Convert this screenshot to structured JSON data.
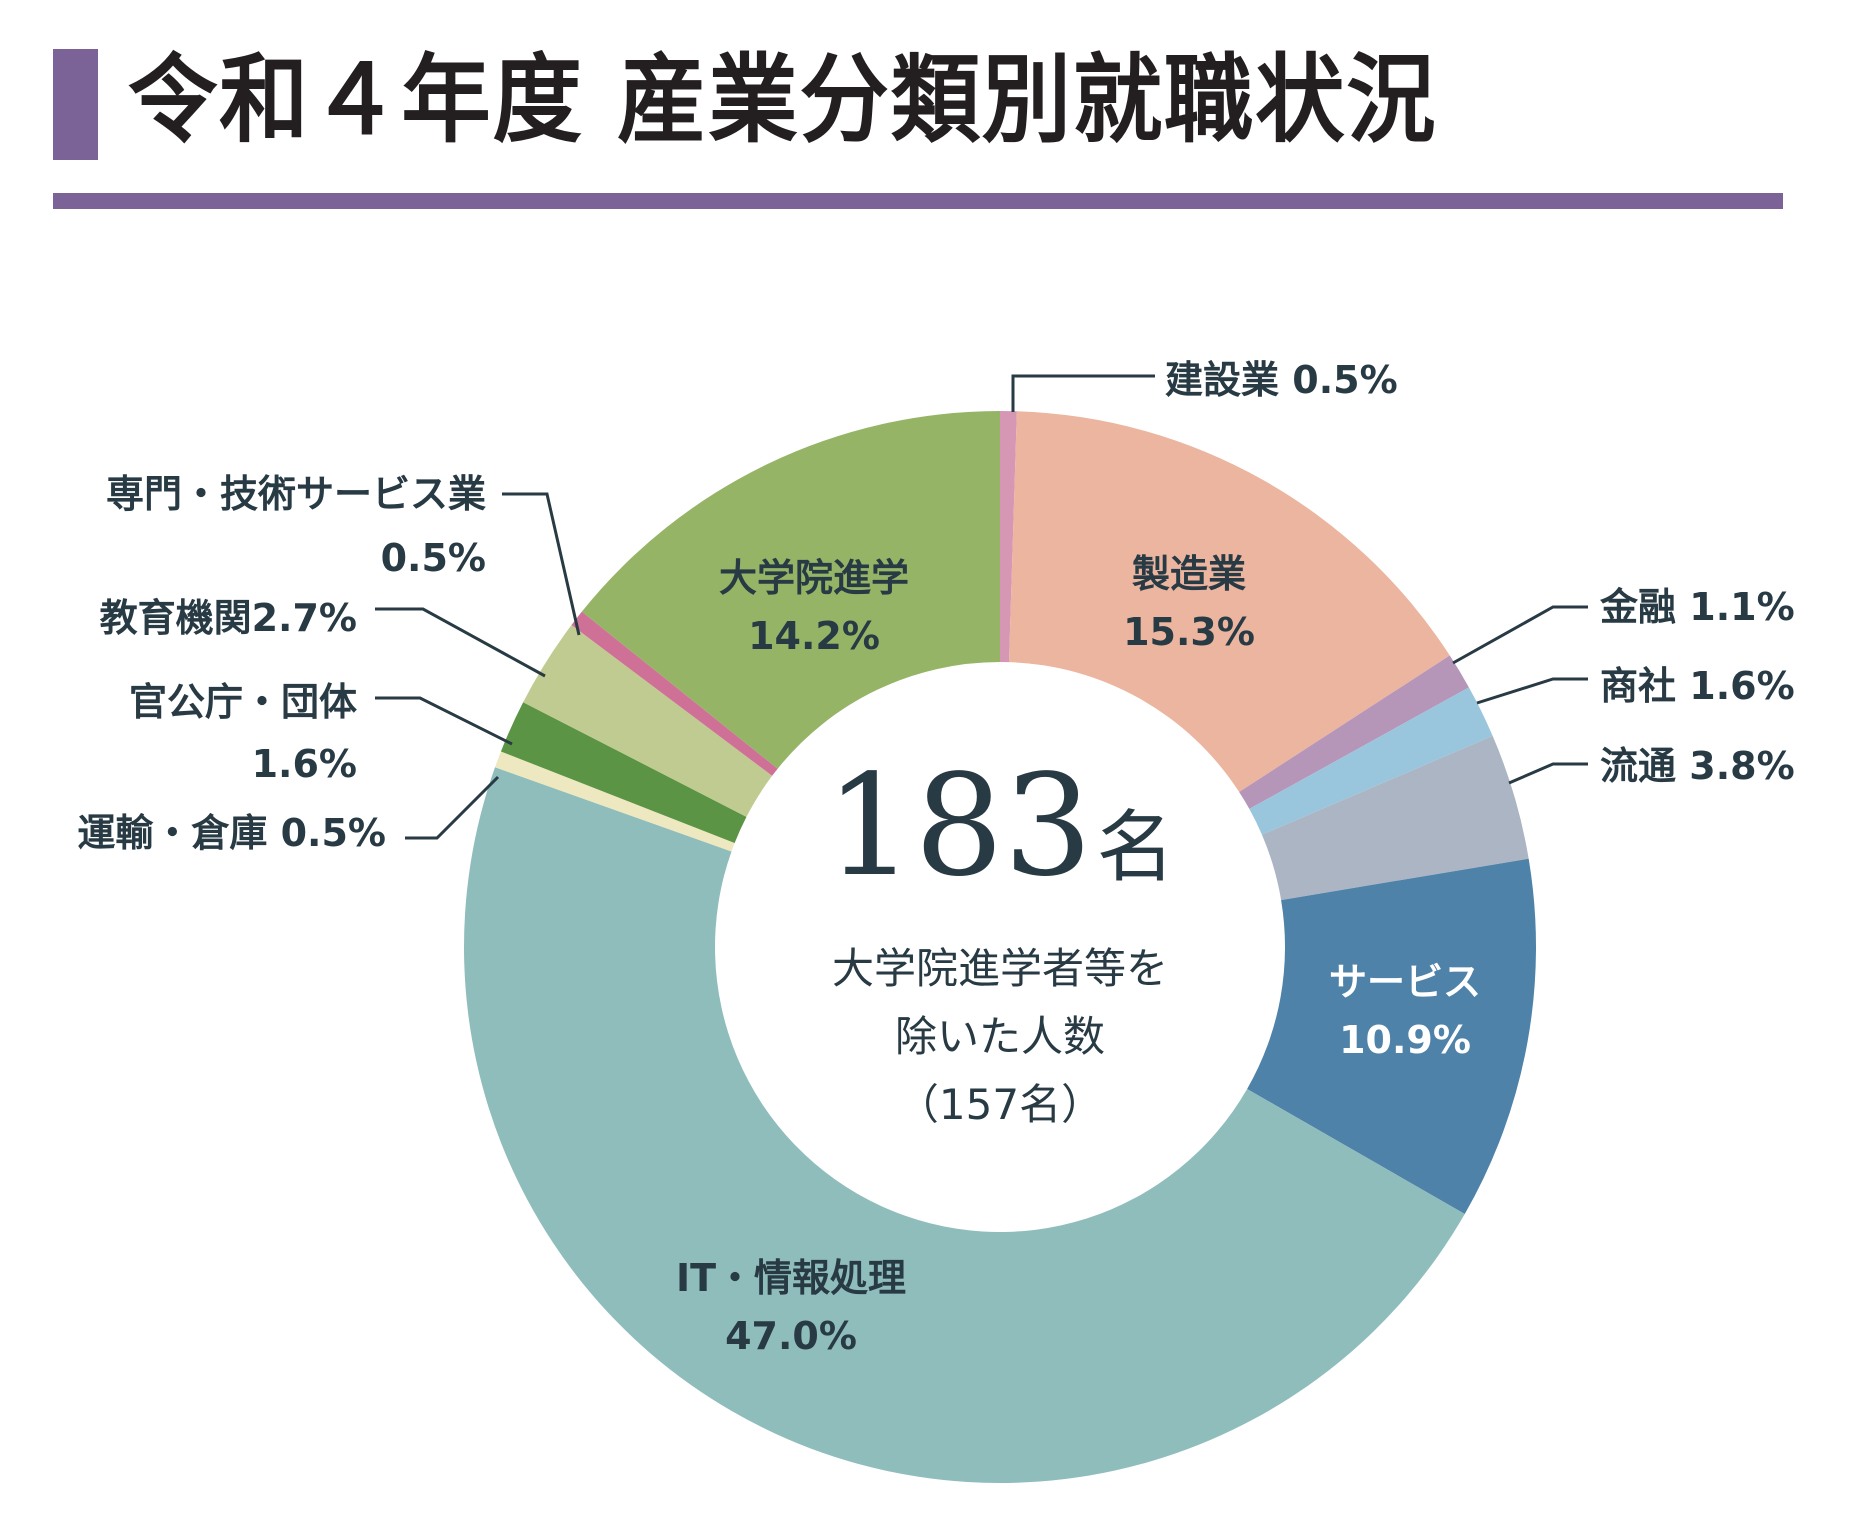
{
  "title": {
    "prefix": "令和４年度",
    "main": "産業分類別就職状況"
  },
  "center": {
    "total_value": "183",
    "total_unit": "名",
    "note_line1": "大学院進学者等を",
    "note_line2": "除いた人数",
    "note_line3": "（157名）"
  },
  "colors": {
    "accent": "#7b6398",
    "text": "#283a44",
    "title_text": "#231f20",
    "leader_line": "#283a44"
  },
  "chart_data": {
    "type": "pie",
    "variant": "donut",
    "title": "令和４年度 産業分類別就職状況",
    "center_label": "183名 大学院進学者等を除いた人数（157名）",
    "start_angle_deg": 0,
    "direction": "clockwise",
    "unit": "%",
    "categories": [
      "建設業",
      "製造業",
      "金融",
      "商社",
      "流通",
      "サービス",
      "IT・情報処理",
      "運輸・倉庫",
      "官公庁・団体",
      "教育機関",
      "専門・技術サービス業",
      "大学院進学"
    ],
    "values": [
      0.5,
      15.3,
      1.1,
      1.6,
      3.8,
      10.9,
      47.0,
      0.5,
      1.6,
      2.7,
      0.5,
      14.2
    ],
    "slice_colors": [
      "#d597b4",
      "#ebb5a0",
      "#b595b8",
      "#99c6dd",
      "#acb5c3",
      "#4e82a8",
      "#8fbdbc",
      "#ede8bf",
      "#5b9444",
      "#c0cb91",
      "#cf7096",
      "#95b466"
    ],
    "legend": "none (leader-line labels)"
  },
  "labels": {
    "construction": {
      "name": "建設業",
      "value": "0.5%"
    },
    "manufacturing": {
      "name": "製造業",
      "value": "15.3%"
    },
    "finance": {
      "name": "金融",
      "value": "1.1%"
    },
    "trading": {
      "name": "商社",
      "value": "1.6%"
    },
    "distribution": {
      "name": "流通",
      "value": "3.8%"
    },
    "service": {
      "name": "サービス",
      "value": "10.9%"
    },
    "it": {
      "name": "IT・情報処理",
      "value": "47.0%"
    },
    "transport": {
      "name": "運輸・倉庫",
      "value": "0.5%"
    },
    "government": {
      "name": "官公庁・団体",
      "value": "1.6%"
    },
    "education": {
      "name": "教育機関",
      "value": "2.7%"
    },
    "professional": {
      "name": "専門・技術サービス業",
      "value": "0.5%"
    },
    "grad_school": {
      "name": "大学院進学",
      "value": "14.2%"
    }
  }
}
